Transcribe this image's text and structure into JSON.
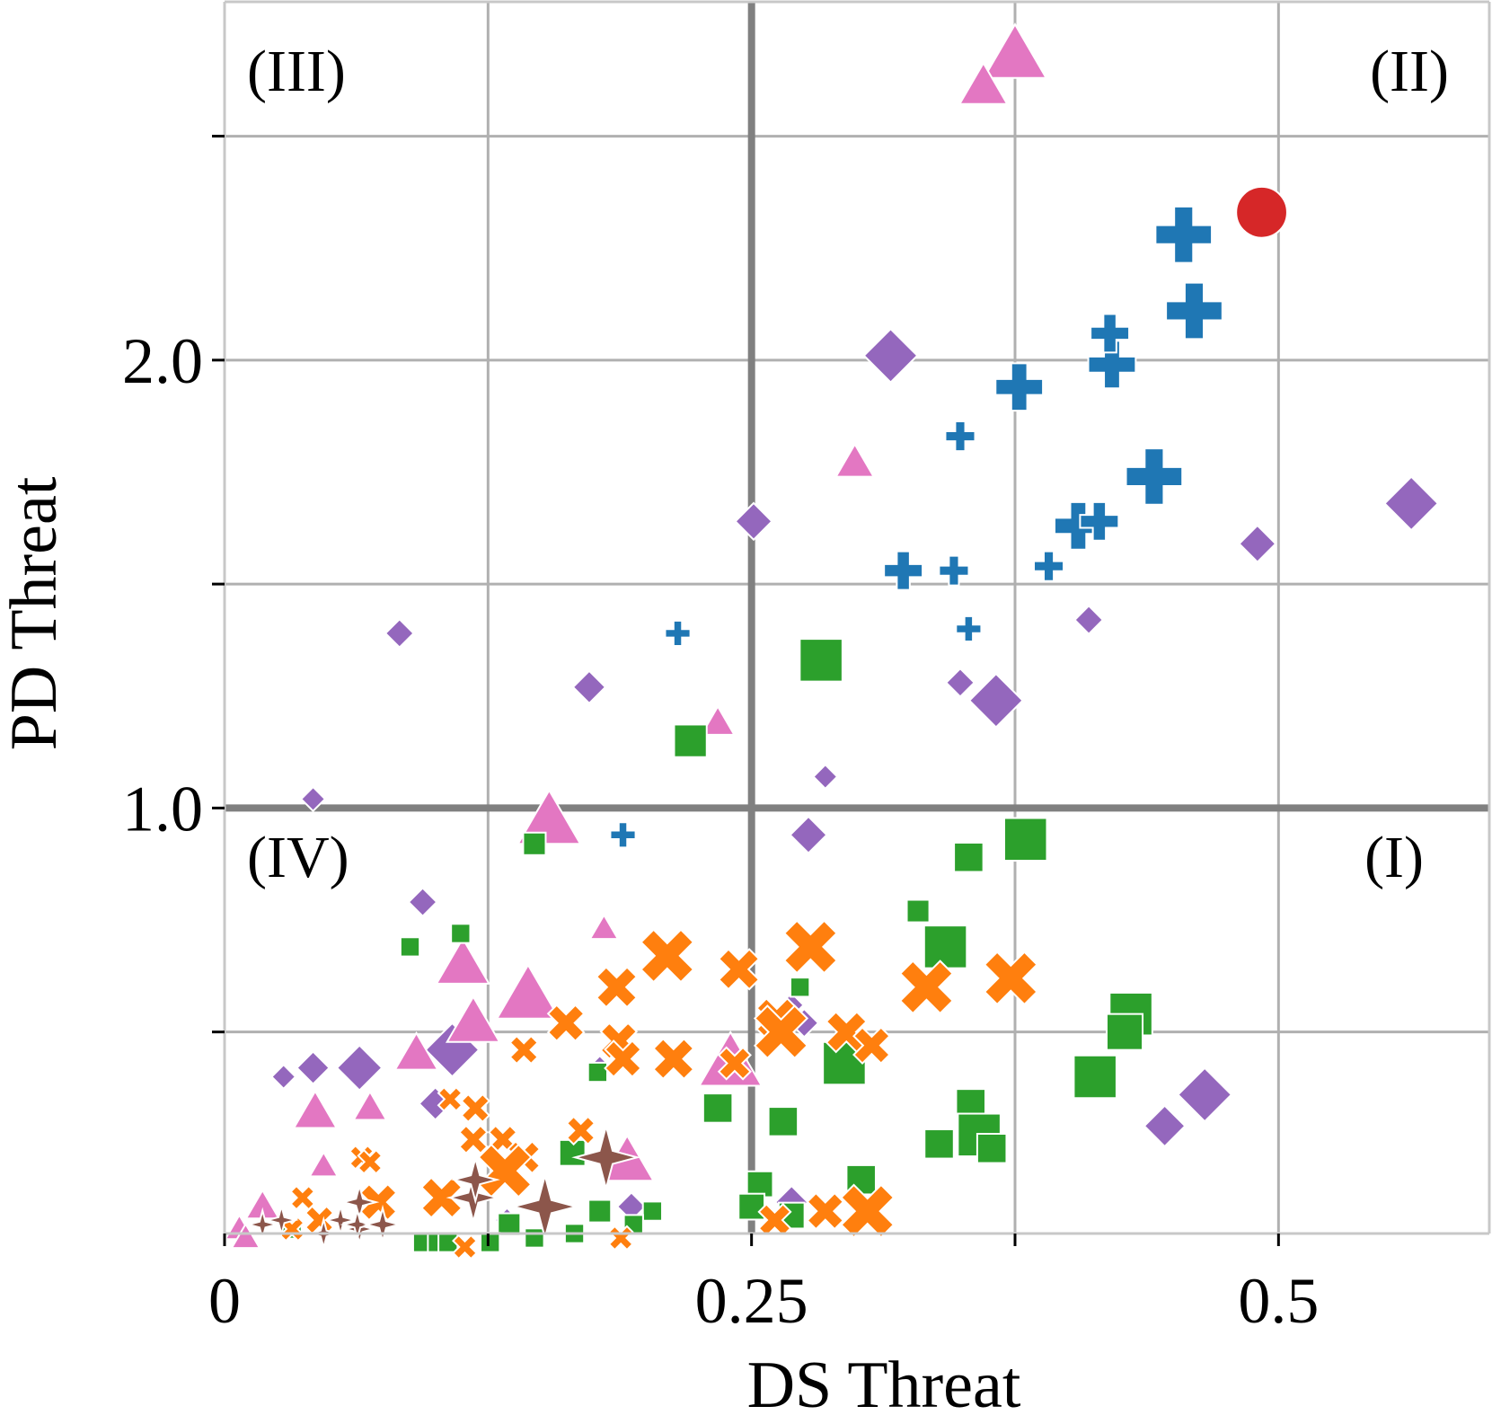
{
  "chart_data": {
    "type": "scatter",
    "title": "",
    "xlabel": "DS Threat",
    "ylabel": "PD Threat",
    "xlim": [
      0,
      0.6
    ],
    "ylim": [
      0.05,
      2.8
    ],
    "x_ticks": [
      {
        "value": 0,
        "label": "0"
      },
      {
        "value": 0.125,
        "label": ""
      },
      {
        "value": 0.25,
        "label": "0.25"
      },
      {
        "value": 0.375,
        "label": ""
      },
      {
        "value": 0.5,
        "label": "0.5"
      }
    ],
    "y_ticks": [
      {
        "value": 0.5,
        "label": ""
      },
      {
        "value": 1.0,
        "label": "1.0"
      },
      {
        "value": 1.5,
        "label": ""
      },
      {
        "value": 2.0,
        "label": "2.0"
      },
      {
        "value": 2.5,
        "label": ""
      }
    ],
    "grid": true,
    "reference_lines": {
      "x": 0.25,
      "y": 1.0
    },
    "quadrant_labels": [
      {
        "id": "III",
        "text": "(III)",
        "position": "top-left"
      },
      {
        "id": "II",
        "text": "(II)",
        "position": "top-right"
      },
      {
        "id": "IV",
        "text": "(IV)",
        "position": "bottom-left"
      },
      {
        "id": "I",
        "text": "(I)",
        "position": "bottom-right"
      }
    ],
    "series": [
      {
        "marker": "circle",
        "color": "#d62728",
        "points": [
          [
            0.492,
            2.33,
            5
          ]
        ]
      },
      {
        "marker": "plus",
        "color": "#1f77b4",
        "points": [
          [
            0.455,
            2.28,
            5
          ],
          [
            0.46,
            2.11,
            5
          ],
          [
            0.441,
            1.74,
            5
          ],
          [
            0.377,
            1.94,
            4
          ],
          [
            0.421,
            1.99,
            4
          ],
          [
            0.42,
            2.06,
            3
          ],
          [
            0.405,
            1.63,
            4
          ],
          [
            0.415,
            1.64,
            3
          ],
          [
            0.349,
            1.83,
            2
          ],
          [
            0.391,
            1.54,
            2
          ],
          [
            0.322,
            1.53,
            3
          ],
          [
            0.346,
            1.53,
            2
          ],
          [
            0.353,
            1.4,
            1.5
          ],
          [
            0.215,
            1.39,
            1.5
          ],
          [
            0.189,
            0.94,
            1.5
          ]
        ]
      },
      {
        "marker": "diamond",
        "color": "#9467bd",
        "points": [
          [
            0.316,
            2.01,
            5
          ],
          [
            0.563,
            1.68,
            5
          ],
          [
            0.49,
            1.59,
            3
          ],
          [
            0.251,
            1.64,
            3
          ],
          [
            0.41,
            1.42,
            2
          ],
          [
            0.083,
            1.39,
            2
          ],
          [
            0.173,
            1.27,
            2.5
          ],
          [
            0.349,
            1.28,
            2
          ],
          [
            0.366,
            1.24,
            5
          ],
          [
            0.285,
            1.07,
            1.5
          ],
          [
            0.042,
            1.02,
            1.5
          ],
          [
            0.277,
            0.94,
            3
          ],
          [
            0.094,
            0.79,
            2
          ],
          [
            0.108,
            0.46,
            5
          ],
          [
            0.064,
            0.42,
            4
          ],
          [
            0.042,
            0.42,
            2.5
          ],
          [
            0.028,
            0.4,
            1.5
          ],
          [
            0.1,
            0.34,
            2.5
          ],
          [
            0.465,
            0.36,
            5
          ],
          [
            0.446,
            0.29,
            3.5
          ],
          [
            0.178,
            0.42,
            1.5
          ],
          [
            0.269,
            0.12,
            2.5
          ],
          [
            0.193,
            0.11,
            2
          ],
          [
            0.134,
            0.08,
            1.5
          ],
          [
            0.269,
            0.56,
            1.5
          ],
          [
            0.275,
            0.52,
            2
          ]
        ]
      },
      {
        "marker": "triangle",
        "color": "#e377c2",
        "points": [
          [
            0.375,
            2.68,
            5
          ],
          [
            0.36,
            2.61,
            3.5
          ],
          [
            0.299,
            1.77,
            2.5
          ],
          [
            0.154,
            0.97,
            5
          ],
          [
            0.234,
            1.19,
            2
          ],
          [
            0.113,
            0.65,
            4
          ],
          [
            0.144,
            0.58,
            5
          ],
          [
            0.118,
            0.52,
            4
          ],
          [
            0.091,
            0.45,
            3
          ],
          [
            0.24,
            0.43,
            5
          ],
          [
            0.043,
            0.32,
            3
          ],
          [
            0.069,
            0.33,
            2
          ],
          [
            0.191,
            0.21,
            4
          ],
          [
            0.047,
            0.2,
            1.5
          ],
          [
            0.018,
            0.11,
            2
          ],
          [
            0.007,
            0.06,
            1.5
          ],
          [
            0.01,
            0.04,
            1.5
          ],
          [
            0.18,
            0.73,
            1.5
          ]
        ]
      },
      {
        "marker": "square",
        "color": "#2ca02c",
        "points": [
          [
            0.283,
            1.33,
            5
          ],
          [
            0.221,
            1.15,
            3.5
          ],
          [
            0.147,
            0.92,
            2
          ],
          [
            0.38,
            0.93,
            5
          ],
          [
            0.353,
            0.89,
            3
          ],
          [
            0.329,
            0.77,
            2
          ],
          [
            0.342,
            0.69,
            5
          ],
          [
            0.273,
            0.6,
            1.5
          ],
          [
            0.43,
            0.54,
            5
          ],
          [
            0.427,
            0.5,
            4
          ],
          [
            0.294,
            0.43,
            5
          ],
          [
            0.413,
            0.4,
            5
          ],
          [
            0.234,
            0.33,
            3
          ],
          [
            0.265,
            0.3,
            3
          ],
          [
            0.354,
            0.34,
            3
          ],
          [
            0.358,
            0.27,
            5
          ],
          [
            0.339,
            0.25,
            3
          ],
          [
            0.364,
            0.24,
            3
          ],
          [
            0.165,
            0.23,
            2.5
          ],
          [
            0.302,
            0.17,
            3
          ],
          [
            0.254,
            0.16,
            2.5
          ],
          [
            0.25,
            0.11,
            2.5
          ],
          [
            0.269,
            0.09,
            2.5
          ],
          [
            0.178,
            0.1,
            2
          ],
          [
            0.203,
            0.1,
            1.5
          ],
          [
            0.135,
            0.07,
            2
          ],
          [
            0.147,
            0.04,
            1.5
          ],
          [
            0.166,
            0.05,
            1.5
          ],
          [
            0.126,
            0.03,
            1.5
          ],
          [
            0.094,
            0.03,
            1.5
          ],
          [
            0.101,
            0.03,
            1.5
          ],
          [
            0.106,
            0.03,
            1.5
          ],
          [
            0.088,
            0.69,
            1.5
          ],
          [
            0.112,
            0.72,
            1.5
          ],
          [
            0.177,
            0.41,
            1.5
          ],
          [
            0.194,
            0.07,
            1.5
          ],
          [
            0.032,
            0.06,
            1.5
          ]
        ]
      },
      {
        "marker": "x",
        "color": "#ff7f0e",
        "points": [
          [
            0.278,
            0.69,
            5
          ],
          [
            0.21,
            0.67,
            5
          ],
          [
            0.244,
            0.64,
            3.5
          ],
          [
            0.373,
            0.62,
            5
          ],
          [
            0.333,
            0.6,
            5
          ],
          [
            0.186,
            0.6,
            3.5
          ],
          [
            0.262,
            0.53,
            3.5
          ],
          [
            0.264,
            0.5,
            5
          ],
          [
            0.295,
            0.5,
            3.5
          ],
          [
            0.162,
            0.52,
            3
          ],
          [
            0.187,
            0.48,
            3
          ],
          [
            0.307,
            0.47,
            3
          ],
          [
            0.213,
            0.44,
            3.5
          ],
          [
            0.189,
            0.44,
            3
          ],
          [
            0.142,
            0.46,
            2
          ],
          [
            0.242,
            0.43,
            2.5
          ],
          [
            0.119,
            0.33,
            2
          ],
          [
            0.107,
            0.35,
            1.5
          ],
          [
            0.169,
            0.28,
            2
          ],
          [
            0.132,
            0.26,
            2
          ],
          [
            0.118,
            0.26,
            2
          ],
          [
            0.142,
            0.22,
            2.5
          ],
          [
            0.065,
            0.22,
            1.5
          ],
          [
            0.069,
            0.21,
            1.5
          ],
          [
            0.133,
            0.19,
            5
          ],
          [
            0.103,
            0.13,
            3.5
          ],
          [
            0.073,
            0.12,
            3
          ],
          [
            0.305,
            0.1,
            5
          ],
          [
            0.285,
            0.1,
            3
          ],
          [
            0.261,
            0.08,
            2.5
          ],
          [
            0.045,
            0.08,
            2
          ],
          [
            0.037,
            0.13,
            1.5
          ],
          [
            0.032,
            0.06,
            1.5
          ],
          [
            0.188,
            0.04,
            1.5
          ],
          [
            0.114,
            0.02,
            1.5
          ]
        ]
      },
      {
        "marker": "star4",
        "color": "#8c564b",
        "points": [
          [
            0.181,
            0.22,
            5
          ],
          [
            0.152,
            0.11,
            5
          ],
          [
            0.118,
            0.13,
            3.5
          ],
          [
            0.119,
            0.17,
            3
          ],
          [
            0.064,
            0.12,
            2
          ],
          [
            0.055,
            0.08,
            1.5
          ],
          [
            0.064,
            0.06,
            1.5
          ],
          [
            0.063,
            0.07,
            1.5
          ],
          [
            0.075,
            0.07,
            2
          ],
          [
            0.027,
            0.08,
            1.5
          ],
          [
            0.018,
            0.07,
            1.5
          ],
          [
            0.047,
            0.05,
            1.5
          ]
        ]
      }
    ]
  }
}
